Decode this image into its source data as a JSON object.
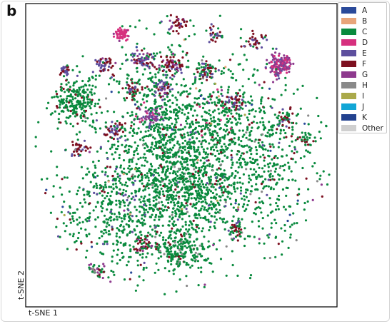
{
  "figure": {
    "panel_letter": "b"
  },
  "chart_data": {
    "type": "scatter",
    "title": "",
    "xlabel": "t-SNE 1",
    "ylabel": "t-SNE 2",
    "grid": false,
    "ticks": false,
    "legend_position": "outside-top-right",
    "legend": [
      {
        "name": "A",
        "color": "#2a4a9a"
      },
      {
        "name": "B",
        "color": "#e8a57a"
      },
      {
        "name": "C",
        "color": "#0a8a3e"
      },
      {
        "name": "D",
        "color": "#d6307e"
      },
      {
        "name": "E",
        "color": "#5d4f9e"
      },
      {
        "name": "F",
        "color": "#7d1020"
      },
      {
        "name": "G",
        "color": "#8e3a8e"
      },
      {
        "name": "H",
        "color": "#8a8a8a"
      },
      {
        "name": "I",
        "color": "#aaa94a"
      },
      {
        "name": "J",
        "color": "#12a6d6"
      },
      {
        "name": "K",
        "color": "#23428f"
      },
      {
        "name": "Other",
        "color": "#cfcfcf"
      }
    ],
    "clusters": [
      {
        "cx": 0.44,
        "cy": 0.5,
        "rx": 0.14,
        "ry": 0.36,
        "n": 900,
        "mix": {
          "C": 0.93,
          "F": 0.03,
          "H": 0.02,
          "E": 0.02
        }
      },
      {
        "cx": 0.55,
        "cy": 0.62,
        "rx": 0.12,
        "ry": 0.14,
        "n": 380,
        "mix": {
          "C": 0.92,
          "F": 0.04,
          "H": 0.04
        }
      },
      {
        "cx": 0.16,
        "cy": 0.32,
        "rx": 0.07,
        "ry": 0.07,
        "n": 220,
        "mix": {
          "C": 0.95,
          "F": 0.05
        }
      },
      {
        "cx": 0.28,
        "cy": 0.68,
        "rx": 0.16,
        "ry": 0.2,
        "n": 360,
        "mix": {
          "C": 0.9,
          "F": 0.05,
          "E": 0.05
        }
      },
      {
        "cx": 0.76,
        "cy": 0.52,
        "rx": 0.16,
        "ry": 0.26,
        "n": 420,
        "mix": {
          "C": 0.9,
          "F": 0.05,
          "E": 0.03,
          "H": 0.02
        }
      },
      {
        "cx": 0.62,
        "cy": 0.4,
        "rx": 0.1,
        "ry": 0.12,
        "n": 220,
        "mix": {
          "C": 0.9,
          "F": 0.06,
          "D": 0.04
        }
      },
      {
        "cx": 0.5,
        "cy": 0.82,
        "rx": 0.08,
        "ry": 0.05,
        "n": 160,
        "mix": {
          "C": 0.85,
          "F": 0.08,
          "H": 0.07
        }
      },
      {
        "cx": 0.22,
        "cy": 0.89,
        "rx": 0.04,
        "ry": 0.03,
        "n": 60,
        "mix": {
          "C": 0.3,
          "G": 0.25,
          "F": 0.25,
          "H": 0.2
        }
      },
      {
        "cx": 0.31,
        "cy": 0.1,
        "rx": 0.022,
        "ry": 0.02,
        "n": 70,
        "mix": {
          "D": 0.9,
          "G": 0.1
        }
      },
      {
        "cx": 0.82,
        "cy": 0.2,
        "rx": 0.04,
        "ry": 0.04,
        "n": 140,
        "mix": {
          "G": 0.55,
          "D": 0.35,
          "E": 0.1
        }
      },
      {
        "cx": 0.4,
        "cy": 0.37,
        "rx": 0.04,
        "ry": 0.03,
        "n": 60,
        "mix": {
          "G": 0.6,
          "D": 0.2,
          "E": 0.2
        }
      },
      {
        "cx": 0.25,
        "cy": 0.2,
        "rx": 0.03,
        "ry": 0.03,
        "n": 50,
        "mix": {
          "E": 0.4,
          "F": 0.4,
          "G": 0.2
        }
      },
      {
        "cx": 0.37,
        "cy": 0.18,
        "rx": 0.04,
        "ry": 0.03,
        "n": 60,
        "mix": {
          "E": 0.4,
          "F": 0.3,
          "G": 0.2,
          "A": 0.1
        }
      },
      {
        "cx": 0.47,
        "cy": 0.2,
        "rx": 0.04,
        "ry": 0.03,
        "n": 60,
        "mix": {
          "F": 0.5,
          "E": 0.3,
          "G": 0.2
        }
      },
      {
        "cx": 0.58,
        "cy": 0.22,
        "rx": 0.04,
        "ry": 0.03,
        "n": 60,
        "mix": {
          "F": 0.4,
          "E": 0.3,
          "C": 0.3
        }
      },
      {
        "cx": 0.67,
        "cy": 0.32,
        "rx": 0.03,
        "ry": 0.03,
        "n": 45,
        "mix": {
          "F": 0.6,
          "E": 0.2,
          "C": 0.2
        }
      },
      {
        "cx": 0.34,
        "cy": 0.28,
        "rx": 0.03,
        "ry": 0.03,
        "n": 45,
        "mix": {
          "F": 0.5,
          "E": 0.3,
          "C": 0.2
        }
      },
      {
        "cx": 0.28,
        "cy": 0.42,
        "rx": 0.03,
        "ry": 0.03,
        "n": 40,
        "mix": {
          "E": 0.5,
          "F": 0.5
        }
      },
      {
        "cx": 0.17,
        "cy": 0.48,
        "rx": 0.03,
        "ry": 0.025,
        "n": 35,
        "mix": {
          "F": 0.6,
          "E": 0.4
        }
      },
      {
        "cx": 0.49,
        "cy": 0.06,
        "rx": 0.03,
        "ry": 0.03,
        "n": 35,
        "mix": {
          "F": 0.5,
          "E": 0.3,
          "G": 0.2
        }
      },
      {
        "cx": 0.74,
        "cy": 0.12,
        "rx": 0.03,
        "ry": 0.03,
        "n": 35,
        "mix": {
          "F": 0.5,
          "E": 0.3,
          "C": 0.2
        }
      },
      {
        "cx": 0.12,
        "cy": 0.22,
        "rx": 0.02,
        "ry": 0.02,
        "n": 25,
        "mix": {
          "F": 0.6,
          "E": 0.4
        }
      },
      {
        "cx": 0.61,
        "cy": 0.1,
        "rx": 0.03,
        "ry": 0.03,
        "n": 30,
        "mix": {
          "F": 0.5,
          "E": 0.3,
          "C": 0.2
        }
      },
      {
        "cx": 0.44,
        "cy": 0.28,
        "rx": 0.03,
        "ry": 0.03,
        "n": 40,
        "mix": {
          "E": 0.4,
          "F": 0.3,
          "G": 0.3
        }
      },
      {
        "cx": 0.84,
        "cy": 0.38,
        "rx": 0.03,
        "ry": 0.03,
        "n": 35,
        "mix": {
          "F": 0.5,
          "C": 0.3,
          "E": 0.2
        }
      },
      {
        "cx": 0.9,
        "cy": 0.45,
        "rx": 0.03,
        "ry": 0.03,
        "n": 30,
        "mix": {
          "F": 0.4,
          "C": 0.6
        }
      },
      {
        "cx": 0.38,
        "cy": 0.8,
        "rx": 0.04,
        "ry": 0.03,
        "n": 45,
        "mix": {
          "F": 0.4,
          "G": 0.3,
          "C": 0.3
        }
      },
      {
        "cx": 0.68,
        "cy": 0.74,
        "rx": 0.03,
        "ry": 0.03,
        "n": 30,
        "mix": {
          "F": 0.4,
          "C": 0.4,
          "E": 0.2
        }
      },
      {
        "cx": 0.5,
        "cy": 0.5,
        "rx": 0.48,
        "ry": 0.46,
        "n": 700,
        "mix": {
          "C": 0.78,
          "F": 0.07,
          "E": 0.04,
          "H": 0.03,
          "A": 0.02,
          "B": 0.02,
          "G": 0.02,
          "I": 0.01,
          "K": 0.01
        }
      }
    ]
  }
}
